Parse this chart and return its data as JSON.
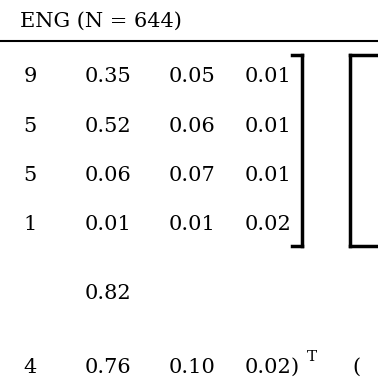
{
  "title": "ENG (N = 644)",
  "matrix_rows": [
    [
      "9",
      "0.35",
      "0.05",
      "0.01"
    ],
    [
      "5",
      "0.52",
      "0.06",
      "0.01"
    ],
    [
      "5",
      "0.06",
      "0.07",
      "0.01"
    ],
    [
      "1",
      "0.01",
      "0.01",
      "0.02"
    ]
  ],
  "eigenvalue": "0.82",
  "eigenvector_parts": [
    "4",
    "0.76",
    "0.10",
    "0.02"
  ],
  "eigenvector_superscript": "T",
  "right_paren": ")",
  "right_bracket_partial": "(",
  "bg_color": "#ffffff",
  "text_color": "#000000",
  "font_size": 15,
  "title_font_size": 15
}
